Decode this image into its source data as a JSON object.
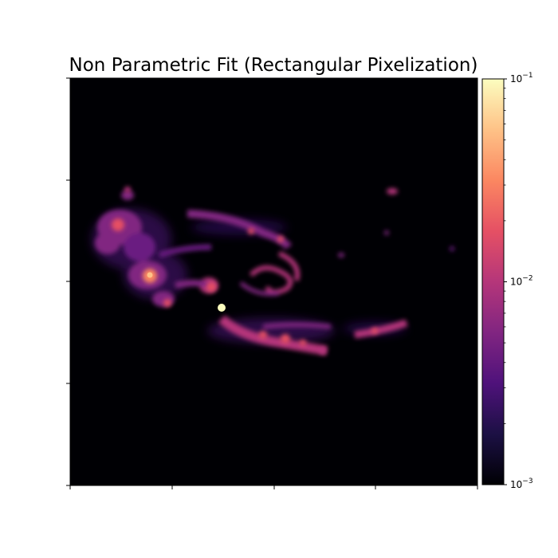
{
  "chart_data": {
    "type": "heatmap",
    "title": "Non Parametric Fit (Rectangular Pixelization)",
    "colormap": "magma",
    "color_scale": "log",
    "vmin": 0.001,
    "vmax": 0.1,
    "colorbar": {
      "position": "right",
      "ticks": [
        {
          "value": 0.001,
          "base": "10",
          "exponent": "−3"
        },
        {
          "value": 0.01,
          "base": "10",
          "exponent": "−2"
        },
        {
          "value": 0.1,
          "base": "10",
          "exponent": "−1"
        }
      ]
    },
    "x_ticks_labeled": false,
    "y_ticks_labeled": false,
    "grid": false
  }
}
